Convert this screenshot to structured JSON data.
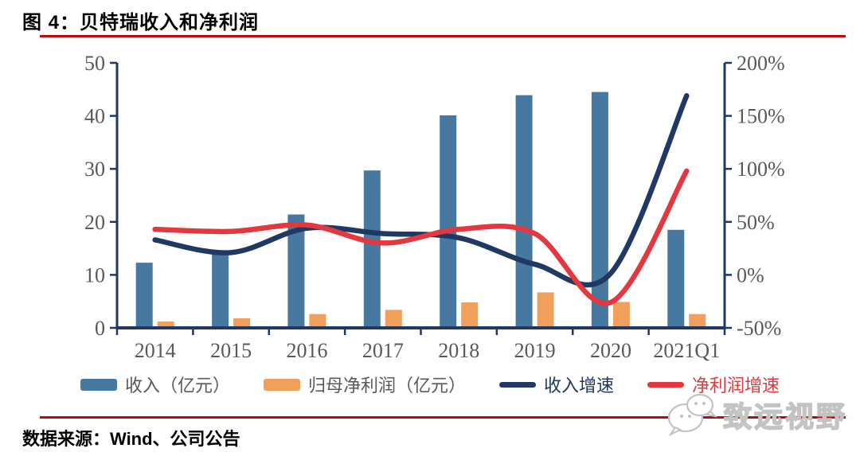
{
  "header": {
    "title": "图 4：贝特瑞收入和净利润"
  },
  "footer": {
    "source": "数据来源：Wind、公司公告",
    "watermark_text": "致远视野"
  },
  "colors": {
    "rule_red": "#b50d0d",
    "axis_navy": "#1f3864",
    "tick_text": "#595959",
    "bar_legend_text": "#595959",
    "watermark_gray": "#c3c3c3",
    "background": "#ffffff"
  },
  "chart_data": {
    "type": "combo",
    "title": "贝特瑞收入和净利润",
    "categories": [
      "2014",
      "2015",
      "2016",
      "2017",
      "2018",
      "2019",
      "2020",
      "2021Q1"
    ],
    "series": [
      {
        "name": "收入（亿元）",
        "type": "bar",
        "axis": "left",
        "color": "#4779a0",
        "values": [
          12.3,
          14.5,
          21.4,
          29.7,
          40.1,
          43.9,
          44.5,
          18.5
        ]
      },
      {
        "name": "归母净利润（亿元）",
        "type": "bar",
        "axis": "left",
        "color": "#f0a05a",
        "values": [
          1.2,
          1.8,
          2.6,
          3.4,
          4.8,
          6.7,
          4.9,
          2.6
        ]
      },
      {
        "name": "收入增速",
        "type": "line",
        "axis": "right",
        "color": "#1f3864",
        "values": [
          33,
          21,
          44,
          39,
          35,
          10,
          1.4,
          169
        ]
      },
      {
        "name": "净利润增速",
        "type": "line",
        "axis": "right",
        "color": "#e2383f",
        "values": [
          43,
          41,
          47,
          30,
          43,
          39,
          -26,
          98
        ]
      }
    ],
    "left_axis": {
      "min": 0,
      "max": 50,
      "step": 10,
      "ticks": [
        "0",
        "10",
        "20",
        "30",
        "40",
        "50"
      ]
    },
    "right_axis": {
      "min": -50,
      "max": 200,
      "step": 50,
      "unit": "%",
      "ticks": [
        "-50%",
        "0%",
        "50%",
        "100%",
        "150%",
        "200%"
      ]
    },
    "legend_position": "bottom",
    "grid": false
  }
}
